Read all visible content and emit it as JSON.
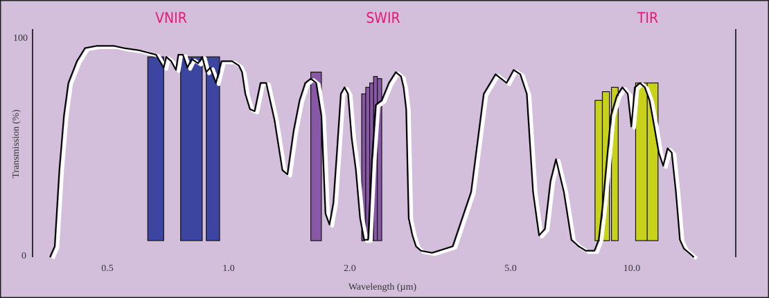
{
  "chart_data": {
    "type": "line",
    "title": "",
    "xlabel": "Wavelength (µm)",
    "ylabel": "Transmission (%)",
    "ylim": [
      0,
      100
    ],
    "x_scale": "log",
    "y_ticks": [
      {
        "value": 0,
        "label": "0"
      },
      {
        "value": 100,
        "label": "100"
      }
    ],
    "x_ticks": [
      {
        "value": 0.5,
        "label": "0.5"
      },
      {
        "value": 1.0,
        "label": "1.0"
      },
      {
        "value": 2.0,
        "label": "2.0"
      },
      {
        "value": 5.0,
        "label": "5.0"
      },
      {
        "value": 10.0,
        "label": "10.0"
      }
    ],
    "regions": [
      {
        "label": "VNIR",
        "center": 0.82
      },
      {
        "label": "SWIR",
        "center": 2.25
      },
      {
        "label": "TIR",
        "center": 10.9
      }
    ],
    "series": [
      {
        "values": [
          [
            0.36,
            0
          ],
          [
            0.37,
            5
          ],
          [
            0.38,
            40
          ],
          [
            0.39,
            65
          ],
          [
            0.4,
            80
          ],
          [
            0.42,
            90
          ],
          [
            0.44,
            96
          ],
          [
            0.47,
            97
          ],
          [
            0.48,
            97
          ],
          [
            0.52,
            97
          ],
          [
            0.55,
            96
          ],
          [
            0.6,
            95
          ],
          [
            0.66,
            93
          ],
          [
            0.69,
            87
          ],
          [
            0.7,
            92
          ],
          [
            0.72,
            90
          ],
          [
            0.74,
            86
          ],
          [
            0.75,
            93
          ],
          [
            0.77,
            93
          ],
          [
            0.79,
            87
          ],
          [
            0.81,
            91
          ],
          [
            0.84,
            89
          ],
          [
            0.86,
            92
          ],
          [
            0.88,
            85
          ],
          [
            0.9,
            87
          ],
          [
            0.93,
            80
          ],
          [
            0.96,
            90
          ],
          [
            0.98,
            90
          ],
          [
            1.02,
            90
          ],
          [
            1.06,
            88
          ],
          [
            1.08,
            85
          ],
          [
            1.1,
            75
          ],
          [
            1.13,
            68
          ],
          [
            1.16,
            67
          ],
          [
            1.2,
            80
          ],
          [
            1.24,
            80
          ],
          [
            1.3,
            63
          ],
          [
            1.36,
            40
          ],
          [
            1.4,
            38
          ],
          [
            1.45,
            58
          ],
          [
            1.5,
            72
          ],
          [
            1.55,
            80
          ],
          [
            1.6,
            82
          ],
          [
            1.65,
            80
          ],
          [
            1.7,
            65
          ],
          [
            1.74,
            20
          ],
          [
            1.78,
            15
          ],
          [
            1.82,
            25
          ],
          [
            1.86,
            50
          ],
          [
            1.9,
            75
          ],
          [
            1.94,
            78
          ],
          [
            1.98,
            75
          ],
          [
            2.02,
            55
          ],
          [
            2.07,
            40
          ],
          [
            2.12,
            18
          ],
          [
            2.17,
            8
          ],
          [
            2.22,
            8
          ],
          [
            2.27,
            45
          ],
          [
            2.32,
            70
          ],
          [
            2.4,
            72
          ],
          [
            2.5,
            80
          ],
          [
            2.6,
            85
          ],
          [
            2.68,
            83
          ],
          [
            2.72,
            78
          ],
          [
            2.76,
            68
          ],
          [
            2.8,
            18
          ],
          [
            2.86,
            10
          ],
          [
            2.92,
            5
          ],
          [
            3.0,
            3
          ],
          [
            3.2,
            2
          ],
          [
            3.6,
            5
          ],
          [
            4.0,
            30
          ],
          [
            4.3,
            75
          ],
          [
            4.6,
            84
          ],
          [
            4.9,
            80
          ],
          [
            5.1,
            86
          ],
          [
            5.3,
            84
          ],
          [
            5.5,
            75
          ],
          [
            5.7,
            30
          ],
          [
            5.9,
            10
          ],
          [
            6.1,
            13
          ],
          [
            6.3,
            35
          ],
          [
            6.5,
            45
          ],
          [
            6.8,
            30
          ],
          [
            7.1,
            8
          ],
          [
            7.4,
            5
          ],
          [
            7.7,
            3
          ],
          [
            8.1,
            3
          ],
          [
            8.3,
            8
          ],
          [
            8.5,
            25
          ],
          [
            8.7,
            45
          ],
          [
            8.9,
            65
          ],
          [
            9.2,
            74
          ],
          [
            9.5,
            78
          ],
          [
            9.8,
            75
          ],
          [
            10.0,
            60
          ],
          [
            10.2,
            78
          ],
          [
            10.5,
            80
          ],
          [
            10.8,
            78
          ],
          [
            11.1,
            72
          ],
          [
            11.4,
            60
          ],
          [
            11.7,
            48
          ],
          [
            12.0,
            42
          ],
          [
            12.3,
            50
          ],
          [
            12.6,
            48
          ],
          [
            12.9,
            30
          ],
          [
            13.2,
            8
          ],
          [
            13.5,
            4
          ],
          [
            13.9,
            2
          ],
          [
            14.3,
            0
          ]
        ]
      }
    ],
    "bands": [
      {
        "region": "VNIR",
        "xmin": 0.63,
        "xmax": 0.69,
        "top": 92,
        "color": "#3c46a0"
      },
      {
        "region": "VNIR",
        "xmin": 0.76,
        "xmax": 0.86,
        "top": 92,
        "color": "#3c46a0"
      },
      {
        "region": "VNIR",
        "xmin": 0.88,
        "xmax": 0.95,
        "top": 92,
        "color": "#3c46a0"
      },
      {
        "region": "SWIR",
        "xmin": 1.6,
        "xmax": 1.7,
        "top": 85,
        "color": "#8858a6"
      },
      {
        "region": "SWIR",
        "xmin": 2.14,
        "xmax": 2.19,
        "top": 75,
        "color": "#8858a6"
      },
      {
        "region": "SWIR",
        "xmin": 2.19,
        "xmax": 2.24,
        "top": 78,
        "color": "#8858a6"
      },
      {
        "region": "SWIR",
        "xmin": 2.24,
        "xmax": 2.29,
        "top": 80,
        "color": "#8858a6"
      },
      {
        "region": "SWIR",
        "xmin": 2.29,
        "xmax": 2.34,
        "top": 83,
        "color": "#8858a6"
      },
      {
        "region": "SWIR",
        "xmin": 2.34,
        "xmax": 2.4,
        "top": 82,
        "color": "#8858a6"
      },
      {
        "region": "TIR",
        "xmin": 8.125,
        "xmax": 8.475,
        "top": 72,
        "color": "#c8d21a"
      },
      {
        "region": "TIR",
        "xmin": 8.475,
        "xmax": 8.825,
        "top": 76,
        "color": "#c8d21a"
      },
      {
        "region": "TIR",
        "xmin": 8.925,
        "xmax": 9.275,
        "top": 78,
        "color": "#c8d21a"
      },
      {
        "region": "TIR",
        "xmin": 10.25,
        "xmax": 10.95,
        "top": 80,
        "color": "#c8d21a"
      },
      {
        "region": "TIR",
        "xmin": 10.95,
        "xmax": 11.65,
        "top": 80,
        "color": "#c8d21a"
      }
    ],
    "colors": {
      "background": "#d3bfdc",
      "border": "#222222",
      "line": "#000000",
      "line_shadow": "#ffffff",
      "region_label": "#e8177a"
    }
  }
}
